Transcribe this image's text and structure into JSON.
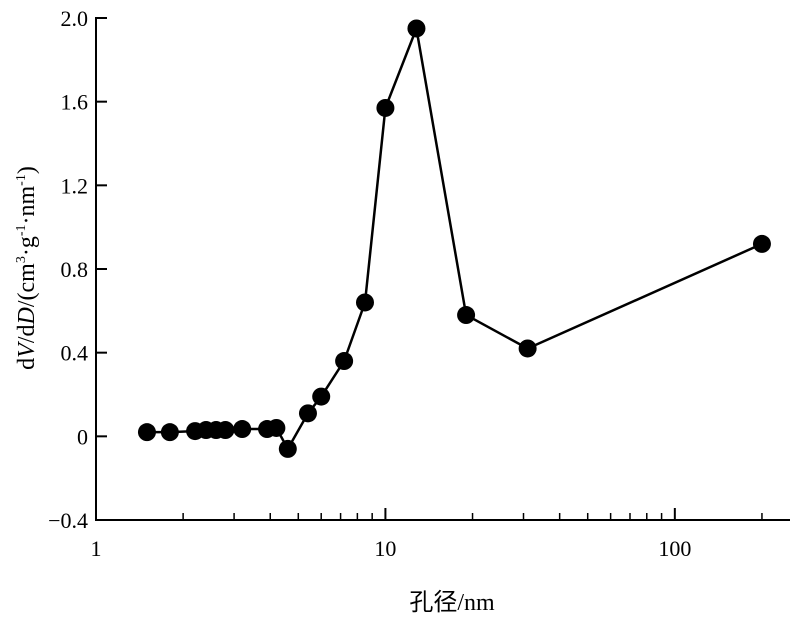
{
  "chart_data": {
    "type": "line",
    "title": "",
    "xlabel": "孔径/nm",
    "ylabel_parts": {
      "prefix_d1": "d",
      "V": "V",
      "slash_d2": "/d",
      "D": "D",
      "open": "/(cm",
      "sup3": "3",
      "g": "·g",
      "supneg1a": "-1",
      "nm": "·nm",
      "supneg1b": "-1",
      "close": ")"
    },
    "x_scale": "log",
    "xlim": [
      1,
      250
    ],
    "ylim": [
      -0.4,
      2.0
    ],
    "x_ticks": [
      1,
      10,
      100
    ],
    "x_tick_labels": [
      "1",
      "10",
      "100"
    ],
    "y_ticks": [
      -0.4,
      0,
      0.4,
      0.8,
      1.2,
      1.6,
      2.0
    ],
    "y_tick_labels": [
      "−0.4",
      "0",
      "0.4",
      "0.8",
      "1.2",
      "1.6",
      "2.0"
    ],
    "grid": false,
    "legend": "none",
    "series": [
      {
        "color": "#000000",
        "marker": "filled-circle",
        "x": [
          1.5,
          1.8,
          2.2,
          2.4,
          2.6,
          2.8,
          3.2,
          3.9,
          4.2,
          4.6,
          5.4,
          6.0,
          7.2,
          8.5,
          10.0,
          12.8,
          19.0,
          31.0,
          200.0
        ],
        "y": [
          0.02,
          0.02,
          0.025,
          0.03,
          0.03,
          0.03,
          0.035,
          0.035,
          0.04,
          -0.06,
          0.11,
          0.19,
          0.36,
          0.64,
          1.57,
          1.95,
          0.58,
          0.42,
          0.92
        ]
      }
    ]
  }
}
